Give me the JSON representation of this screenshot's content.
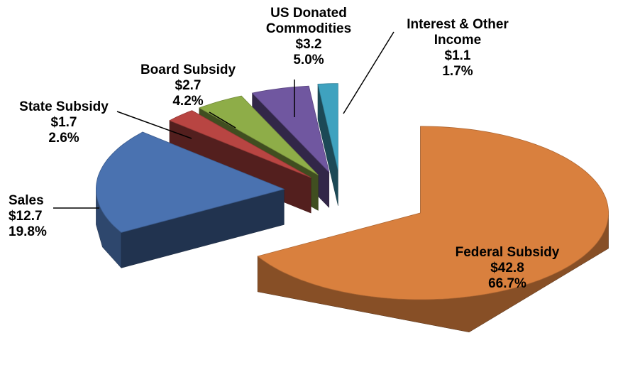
{
  "chart_data": {
    "type": "pie",
    "categories": [
      "Federal Subsidy",
      "Sales",
      "State Subsidy",
      "Board Subsidy",
      "US Donated Commodities",
      "Interest & Other Income"
    ],
    "values": [
      42.8,
      12.7,
      1.7,
      2.7,
      3.2,
      1.1
    ],
    "value_labels": [
      "$42.8",
      "$12.7",
      "$1.7",
      "$2.7",
      "$3.2",
      "$1.1"
    ],
    "percentages": [
      66.7,
      19.8,
      2.6,
      4.2,
      5.0,
      1.7
    ],
    "percentage_labels": [
      "66.7%",
      "19.8%",
      "2.6%",
      "4.2%",
      "5.0%",
      "1.7%"
    ],
    "colors": [
      "#d9803e",
      "#4a72b0",
      "#b84542",
      "#8ead48",
      "#7057a0",
      "#3fa2bf"
    ]
  }
}
